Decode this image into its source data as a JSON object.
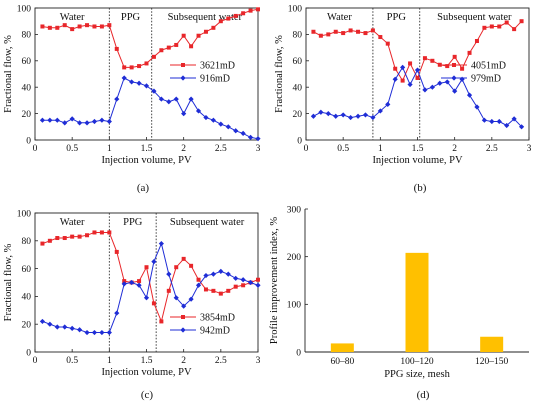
{
  "colors": {
    "red": "#e8262a",
    "blue": "#1f2dd6",
    "bar": "#ffc000",
    "axis": "#222222"
  },
  "chart_data": [
    {
      "id": "a",
      "type": "line",
      "caption": "(a)",
      "xlabel": "Injection volume, PV",
      "ylabel": "Fractional flow, %",
      "xlim": [
        0,
        3
      ],
      "ylim": [
        0,
        100
      ],
      "xticks": [
        "0",
        "0.5",
        "1",
        "1.5",
        "2",
        "2.5",
        "3"
      ],
      "yticks": [
        "0",
        "20",
        "40",
        "60",
        "80",
        "100"
      ],
      "phases": [
        "Water",
        "PPG",
        "Subsequent water"
      ],
      "dividers": [
        1.0,
        1.57
      ],
      "legend_position": "right-middle",
      "series": [
        {
          "name": "3621mD",
          "color": "red",
          "marker": "square",
          "x": [
            0.1,
            0.2,
            0.3,
            0.4,
            0.5,
            0.6,
            0.7,
            0.8,
            0.9,
            1.0,
            1.1,
            1.2,
            1.3,
            1.4,
            1.5,
            1.6,
            1.7,
            1.8,
            1.9,
            2.0,
            2.1,
            2.2,
            2.3,
            2.4,
            2.5,
            2.6,
            2.7,
            2.8,
            2.9,
            3.0
          ],
          "y": [
            86,
            85,
            85,
            87,
            84,
            86,
            87,
            86,
            86,
            87,
            69,
            55,
            55,
            56,
            58,
            63,
            68,
            70,
            72,
            79,
            71,
            79,
            82,
            85,
            90,
            92,
            94,
            96,
            98,
            99
          ]
        },
        {
          "name": "916mD",
          "color": "blue",
          "marker": "diamond",
          "x": [
            0.1,
            0.2,
            0.3,
            0.4,
            0.5,
            0.6,
            0.7,
            0.8,
            0.9,
            1.0,
            1.1,
            1.2,
            1.3,
            1.4,
            1.5,
            1.6,
            1.7,
            1.8,
            1.9,
            2.0,
            2.1,
            2.2,
            2.3,
            2.4,
            2.5,
            2.6,
            2.7,
            2.8,
            2.9,
            3.0
          ],
          "y": [
            15,
            15,
            15,
            13,
            16,
            13,
            13,
            14,
            15,
            14,
            31,
            47,
            44,
            43,
            41,
            37,
            31,
            29,
            31,
            20,
            31,
            22,
            17,
            15,
            12,
            10,
            7,
            5,
            2,
            1
          ]
        }
      ]
    },
    {
      "id": "b",
      "type": "line",
      "caption": "(b)",
      "xlabel": "Injection volume, PV",
      "ylabel": "Fractional flow, %",
      "xlim": [
        0,
        3
      ],
      "ylim": [
        0,
        100
      ],
      "xticks": [
        "0",
        "0.5",
        "1",
        "1.5",
        "2",
        "2.5",
        "3"
      ],
      "yticks": [
        "0",
        "20",
        "40",
        "60",
        "80",
        "100"
      ],
      "phases": [
        "Water",
        "PPG",
        "Subsequent water"
      ],
      "dividers": [
        0.9,
        1.53
      ],
      "legend_position": "right-middle",
      "series": [
        {
          "name": "4051mD",
          "color": "red",
          "marker": "square",
          "x": [
            0.1,
            0.2,
            0.3,
            0.4,
            0.5,
            0.6,
            0.7,
            0.8,
            0.9,
            1.0,
            1.1,
            1.2,
            1.3,
            1.4,
            1.5,
            1.6,
            1.7,
            1.8,
            1.9,
            2.0,
            2.1,
            2.2,
            2.3,
            2.4,
            2.5,
            2.6,
            2.7,
            2.8,
            2.9
          ],
          "y": [
            82,
            79,
            80,
            82,
            81,
            83,
            82,
            81,
            83,
            78,
            73,
            54,
            45,
            58,
            47,
            62,
            60,
            57,
            56,
            63,
            54,
            66,
            75,
            85,
            86,
            86,
            89,
            84,
            90
          ]
        },
        {
          "name": "979mD",
          "color": "blue",
          "marker": "diamond",
          "x": [
            0.1,
            0.2,
            0.3,
            0.4,
            0.5,
            0.6,
            0.7,
            0.8,
            0.9,
            1.0,
            1.1,
            1.2,
            1.3,
            1.4,
            1.5,
            1.6,
            1.7,
            1.8,
            1.9,
            2.0,
            2.1,
            2.2,
            2.3,
            2.4,
            2.5,
            2.6,
            2.7,
            2.8,
            2.9
          ],
          "y": [
            18,
            21,
            20,
            18,
            19,
            17,
            18,
            19,
            17,
            22,
            27,
            46,
            55,
            42,
            53,
            38,
            40,
            43,
            44,
            37,
            46,
            34,
            25,
            15,
            14,
            14,
            11,
            16,
            10
          ]
        }
      ]
    },
    {
      "id": "c",
      "type": "line",
      "caption": "(c)",
      "xlabel": "Injection volume, PV",
      "ylabel": "Fractional flow, %",
      "xlim": [
        0,
        3
      ],
      "ylim": [
        0,
        100
      ],
      "xticks": [
        "0",
        "0.5",
        "1",
        "1.5",
        "2",
        "2.5",
        "3"
      ],
      "yticks": [
        "0",
        "20",
        "40",
        "60",
        "80",
        "100"
      ],
      "phases": [
        "Water",
        "PPG",
        "Subsequent water"
      ],
      "dividers": [
        1.0,
        1.63
      ],
      "legend_position": "bottom-right",
      "series": [
        {
          "name": "3854mD",
          "color": "red",
          "marker": "square",
          "x": [
            0.1,
            0.2,
            0.3,
            0.4,
            0.5,
            0.6,
            0.7,
            0.8,
            0.9,
            1.0,
            1.1,
            1.2,
            1.3,
            1.4,
            1.5,
            1.6,
            1.7,
            1.8,
            1.9,
            2.0,
            2.1,
            2.2,
            2.3,
            2.4,
            2.5,
            2.6,
            2.7,
            2.8,
            2.9,
            3.0
          ],
          "y": [
            78,
            80,
            82,
            82,
            83,
            83,
            84,
            86,
            86,
            86,
            72,
            51,
            50,
            51,
            61,
            35,
            22,
            44,
            61,
            67,
            62,
            52,
            45,
            44,
            42,
            44,
            47,
            48,
            50,
            52
          ]
        },
        {
          "name": "942mD",
          "color": "blue",
          "marker": "diamond",
          "x": [
            0.1,
            0.2,
            0.3,
            0.4,
            0.5,
            0.6,
            0.7,
            0.8,
            0.9,
            1.0,
            1.1,
            1.2,
            1.3,
            1.4,
            1.5,
            1.6,
            1.7,
            1.8,
            1.9,
            2.0,
            2.1,
            2.2,
            2.3,
            2.4,
            2.5,
            2.6,
            2.7,
            2.8,
            2.9,
            3.0
          ],
          "y": [
            22,
            20,
            18,
            18,
            17,
            16,
            14,
            14,
            14,
            14,
            28,
            49,
            50,
            48,
            39,
            65,
            78,
            56,
            39,
            33,
            38,
            48,
            55,
            56,
            58,
            56,
            53,
            52,
            50,
            48
          ]
        }
      ]
    },
    {
      "id": "d",
      "type": "bar",
      "caption": "(d)",
      "xlabel": "PPG size, mesh",
      "ylabel": "Profile improvement index, %",
      "ylim": [
        0,
        300
      ],
      "yticks": [
        "0",
        "100",
        "200",
        "300"
      ],
      "categories": [
        "60–80",
        "100–120",
        "120–150"
      ],
      "values": [
        18,
        208,
        32
      ],
      "color": "bar"
    }
  ]
}
